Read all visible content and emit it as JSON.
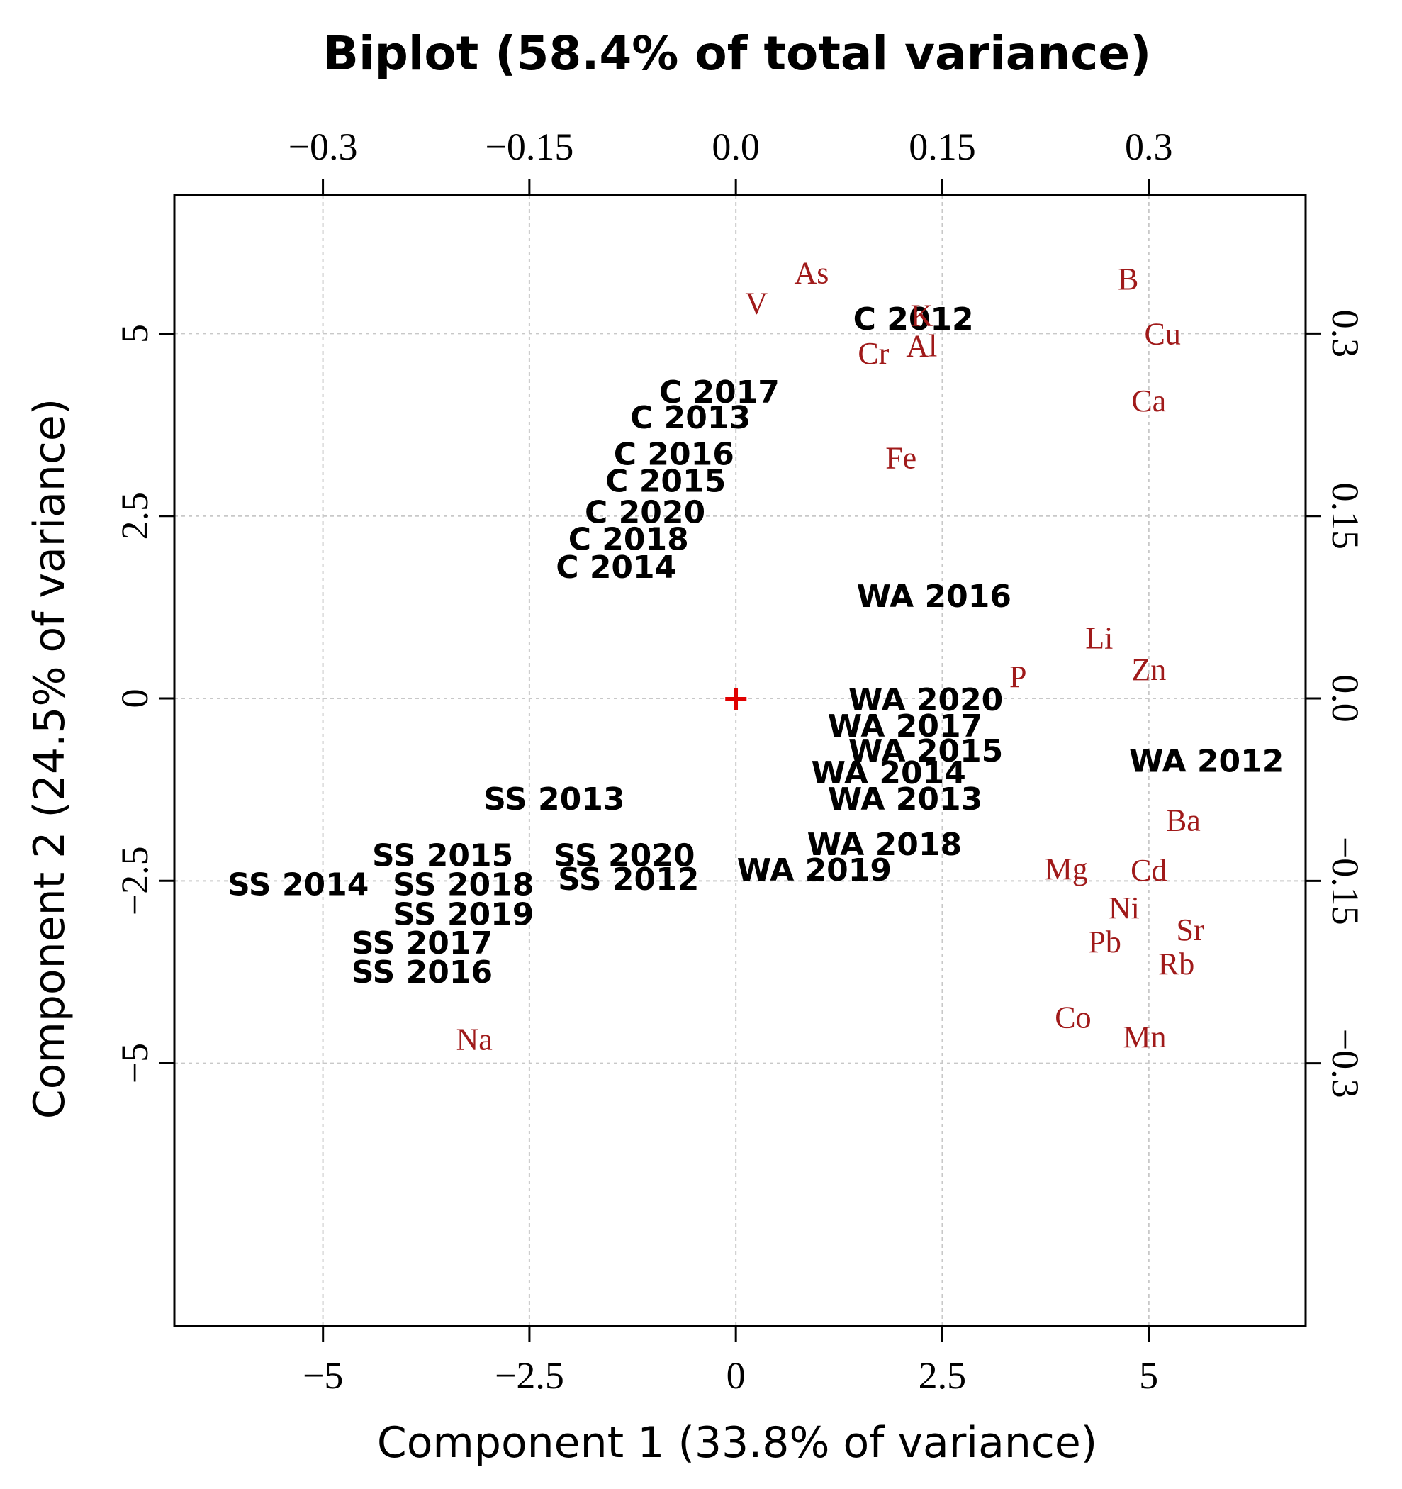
{
  "chart_data": {
    "type": "scatter",
    "subtype": "biplot",
    "title": "Biplot (58.4% of total variance)",
    "xlabel": "Component 1 (33.8% of variance)",
    "ylabel": "Component 2 (24.5% of variance)",
    "xlim": [
      -6.8,
      6.9
    ],
    "ylim": [
      -8.6,
      6.9
    ],
    "xticks": [
      -5,
      -2.5,
      0,
      2.5,
      5
    ],
    "xtick_labels": [
      "−5",
      "−2.5",
      "0",
      "2.5",
      "5"
    ],
    "yticks": [
      -5,
      -2.5,
      0,
      2.5,
      5
    ],
    "ytick_labels": [
      "−5",
      "−2.5",
      "0",
      "2.5",
      "5"
    ],
    "top_ticks": [
      -0.3,
      -0.15,
      0.0,
      0.15,
      0.3
    ],
    "top_tick_labels": [
      "−0.3",
      "−0.15",
      "0.0",
      "0.15",
      "0.3"
    ],
    "right_ticks": [
      -0.3,
      -0.15,
      0.0,
      0.15,
      0.3
    ],
    "right_tick_labels": [
      "−0.3",
      "−0.15",
      "0.0",
      "0.15",
      "0.3"
    ],
    "loading_scale": 16.67,
    "grid": true,
    "origin_marker": "+",
    "colors": {
      "observations": "#000000",
      "variables": "#a01a1a",
      "origin": "#e00000"
    },
    "observations": [
      {
        "label": "C 2012",
        "x": 2.15,
        "y": 5.2
      },
      {
        "label": "C 2017",
        "x": -0.2,
        "y": 4.2
      },
      {
        "label": "C 2013",
        "x": -0.55,
        "y": 3.85
      },
      {
        "label": "C 2016",
        "x": -0.75,
        "y": 3.35
      },
      {
        "label": "C 2015",
        "x": -0.85,
        "y": 2.98
      },
      {
        "label": "C 2020",
        "x": -1.1,
        "y": 2.55
      },
      {
        "label": "C 2018",
        "x": -1.3,
        "y": 2.18
      },
      {
        "label": "C 2014",
        "x": -1.45,
        "y": 1.8
      },
      {
        "label": "WA 2016",
        "x": 2.4,
        "y": 1.4
      },
      {
        "label": "WA 2020",
        "x": 2.3,
        "y": -0.02
      },
      {
        "label": "WA 2017",
        "x": 2.05,
        "y": -0.38
      },
      {
        "label": "WA 2015",
        "x": 2.3,
        "y": -0.72
      },
      {
        "label": "WA 2014",
        "x": 1.85,
        "y": -1.02
      },
      {
        "label": "WA 2013",
        "x": 2.05,
        "y": -1.38
      },
      {
        "label": "WA 2012",
        "x": 5.7,
        "y": -0.86
      },
      {
        "label": "WA 2018",
        "x": 1.8,
        "y": -2.0
      },
      {
        "label": "WA 2019",
        "x": 0.95,
        "y": -2.35
      },
      {
        "label": "SS 2013",
        "x": -2.2,
        "y": -1.38
      },
      {
        "label": "SS 2015",
        "x": -3.55,
        "y": -2.15
      },
      {
        "label": "SS 2020",
        "x": -1.35,
        "y": -2.15
      },
      {
        "label": "SS 2014",
        "x": -5.3,
        "y": -2.55
      },
      {
        "label": "SS 2018",
        "x": -3.3,
        "y": -2.55
      },
      {
        "label": "SS 2012",
        "x": -1.3,
        "y": -2.48
      },
      {
        "label": "SS 2019",
        "x": -3.3,
        "y": -2.96
      },
      {
        "label": "SS 2017",
        "x": -3.8,
        "y": -3.35
      },
      {
        "label": "SS 2016",
        "x": -3.8,
        "y": -3.75
      }
    ],
    "variables": [
      {
        "label": "As",
        "x": 0.055,
        "y": 0.35
      },
      {
        "label": "V",
        "x": 0.015,
        "y": 0.325
      },
      {
        "label": "B",
        "x": 0.285,
        "y": 0.345
      },
      {
        "label": "K",
        "x": 0.135,
        "y": 0.315
      },
      {
        "label": "Cu",
        "x": 0.31,
        "y": 0.3
      },
      {
        "label": "Al",
        "x": 0.135,
        "y": 0.29
      },
      {
        "label": "Cr",
        "x": 0.1,
        "y": 0.284
      },
      {
        "label": "Ca",
        "x": 0.3,
        "y": 0.245
      },
      {
        "label": "Fe",
        "x": 0.12,
        "y": 0.198
      },
      {
        "label": "Li",
        "x": 0.264,
        "y": 0.05
      },
      {
        "label": "Zn",
        "x": 0.3,
        "y": 0.024
      },
      {
        "label": "P",
        "x": 0.205,
        "y": 0.018
      },
      {
        "label": "Ba",
        "x": 0.325,
        "y": -0.1
      },
      {
        "label": "Mg",
        "x": 0.24,
        "y": -0.14
      },
      {
        "label": "Cd",
        "x": 0.3,
        "y": -0.141
      },
      {
        "label": "Ni",
        "x": 0.282,
        "y": -0.172
      },
      {
        "label": "Sr",
        "x": 0.33,
        "y": -0.19
      },
      {
        "label": "Pb",
        "x": 0.268,
        "y": -0.2
      },
      {
        "label": "Rb",
        "x": 0.32,
        "y": -0.218
      },
      {
        "label": "Co",
        "x": 0.245,
        "y": -0.262
      },
      {
        "label": "Mn",
        "x": 0.297,
        "y": -0.278
      },
      {
        "label": "Na",
        "x": -0.19,
        "y": -0.28
      }
    ]
  }
}
